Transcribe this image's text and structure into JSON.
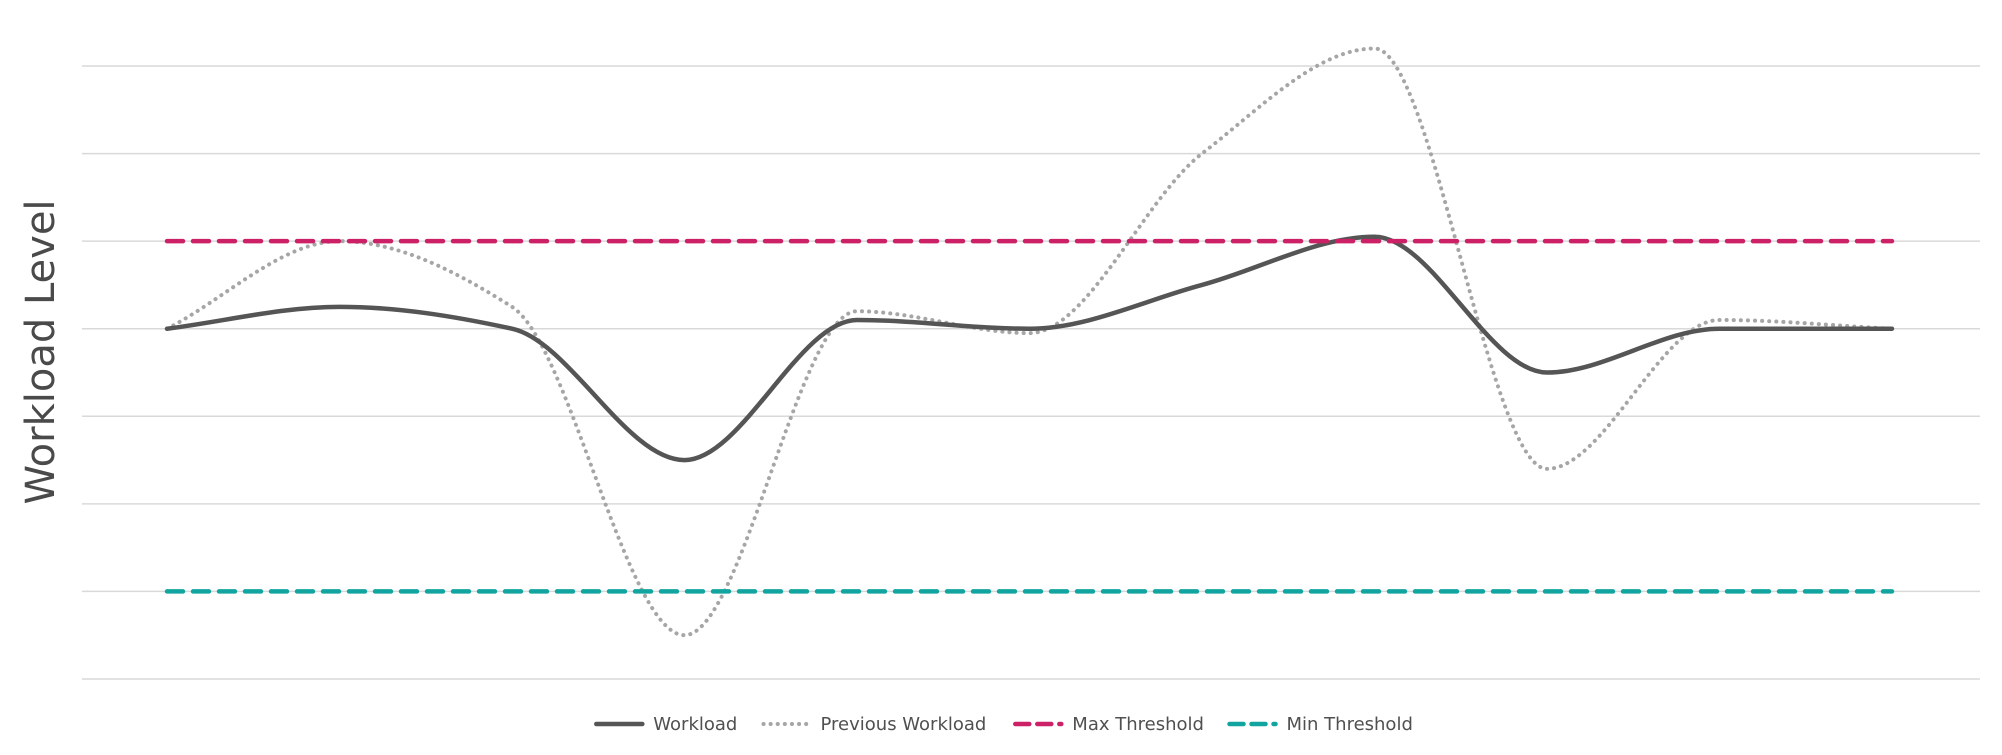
{
  "chart_data": {
    "type": "line",
    "title": "",
    "xlabel": "",
    "ylabel": "Workload Level",
    "ylim": [
      -4,
      3
    ],
    "grid": true,
    "legend_position": "bottom",
    "x": [
      0,
      1,
      2,
      3,
      4,
      5,
      6,
      7,
      8,
      9,
      10
    ],
    "series": [
      {
        "name": "Workload",
        "style": "solid",
        "color": "#555555",
        "values": [
          0,
          0.25,
          0,
          -1.5,
          0.1,
          0,
          0.5,
          1.05,
          -0.5,
          0,
          0
        ]
      },
      {
        "name": "Previous Workload",
        "style": "dotted",
        "color": "#a6a6a6",
        "values": [
          0,
          1,
          0.25,
          -3.5,
          0.2,
          -0.05,
          2,
          3.2,
          -1.6,
          0.1,
          0
        ]
      },
      {
        "name": "Max Threshold",
        "style": "dashed",
        "color": "#cc2166",
        "values": [
          1,
          1,
          1,
          1,
          1,
          1,
          1,
          1,
          1,
          1,
          1
        ]
      },
      {
        "name": "Min Threshold",
        "style": "dashed",
        "color": "#12a5a0",
        "values": [
          -3,
          -3,
          -3,
          -3,
          -3,
          -3,
          -3,
          -3,
          -3,
          -3,
          -3
        ]
      }
    ]
  }
}
